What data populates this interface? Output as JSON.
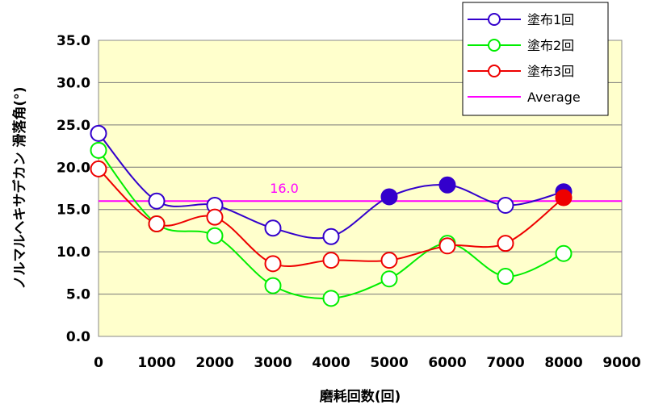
{
  "chart_data": {
    "type": "line",
    "xlabel": "磨耗回数(回)",
    "ylabel": "ノルマルヘキサデカン 滑落角(°)",
    "xlim": [
      0,
      9000
    ],
    "ylim": [
      0,
      35
    ],
    "x_ticks": [
      "0",
      "1000",
      "2000",
      "3000",
      "4000",
      "5000",
      "6000",
      "7000",
      "8000",
      "9000"
    ],
    "y_ticks": [
      "0.0",
      "5.0",
      "10.0",
      "15.0",
      "20.0",
      "25.0",
      "30.0",
      "35.0"
    ],
    "grid": true,
    "plot_background": "#FFFFCC",
    "legend_position": "top-right",
    "series": [
      {
        "name": "塗布1回",
        "color": "#3300CC",
        "x": [
          0,
          1000,
          2000,
          3000,
          4000,
          5000,
          6000,
          7000,
          8000
        ],
        "values": [
          24.0,
          16.0,
          15.5,
          12.8,
          11.8,
          16.5,
          17.9,
          15.5,
          17.1
        ],
        "filled": [
          false,
          false,
          false,
          false,
          false,
          true,
          true,
          false,
          true
        ]
      },
      {
        "name": "塗布2回",
        "color": "#00EE00",
        "x": [
          0,
          1000,
          2000,
          3000,
          4000,
          5000,
          6000,
          7000,
          8000
        ],
        "values": [
          22.0,
          13.3,
          11.9,
          6.0,
          4.5,
          6.8,
          11.0,
          7.1,
          9.8
        ],
        "filled": [
          false,
          false,
          false,
          false,
          false,
          false,
          false,
          false,
          false
        ]
      },
      {
        "name": "塗布3回",
        "color": "#EE0000",
        "x": [
          0,
          1000,
          2000,
          3000,
          4000,
          5000,
          6000,
          7000,
          8000
        ],
        "values": [
          19.8,
          13.3,
          14.1,
          8.6,
          9.0,
          9.0,
          10.7,
          11.0,
          16.4
        ],
        "filled": [
          false,
          false,
          false,
          false,
          false,
          false,
          false,
          false,
          true
        ]
      }
    ],
    "average": {
      "name": "Average",
      "value": 16.0,
      "label": "16.0",
      "color": "#FF00FF"
    }
  }
}
